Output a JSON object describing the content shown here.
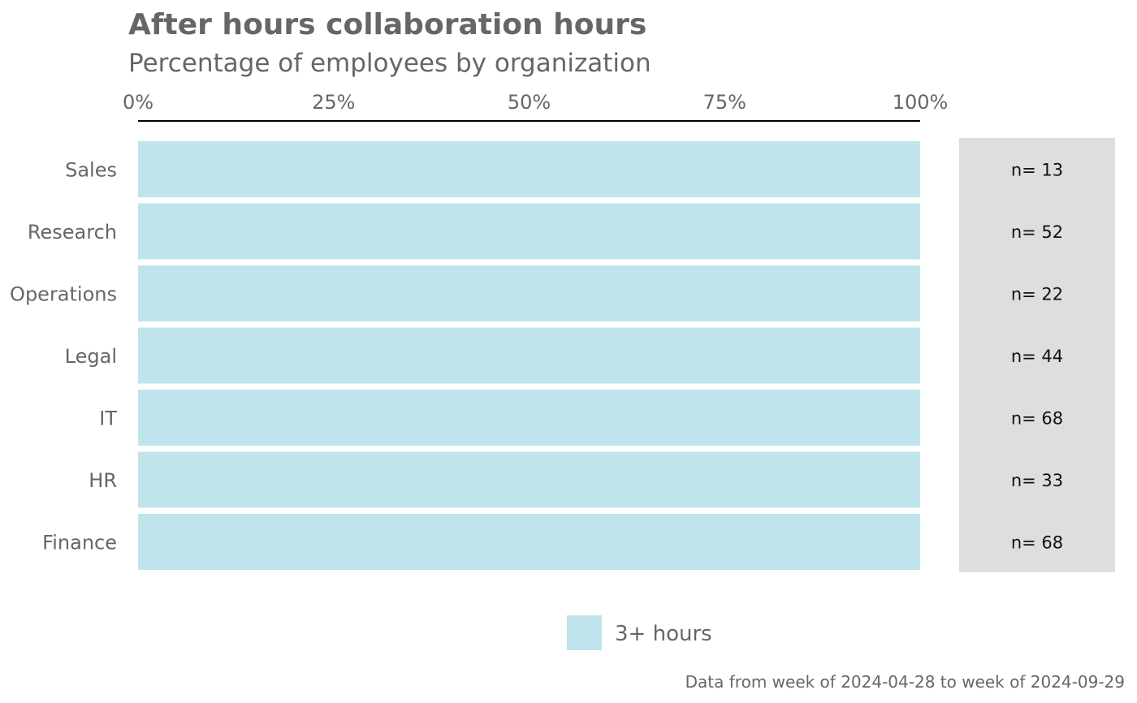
{
  "chart_data": {
    "type": "bar",
    "orientation": "horizontal",
    "stacked": true,
    "title": "After hours collaboration hours",
    "subtitle": "Percentage of employees by organization",
    "categories": [
      "Sales",
      "Research",
      "Operations",
      "Legal",
      "IT",
      "HR",
      "Finance"
    ],
    "series": [
      {
        "name": "3+ hours",
        "values": [
          100,
          100,
          100,
          100,
          100,
          100,
          100
        ],
        "color": "#bfe4ec"
      }
    ],
    "counts": [
      "n= 13",
      "n= 52",
      "n= 22",
      "n= 44",
      "n= 68",
      "n= 33",
      "n= 68"
    ],
    "xlim": [
      0,
      100
    ],
    "xticks": [
      0,
      25,
      50,
      75,
      100
    ],
    "xtick_labels": [
      "0%",
      "25%",
      "50%",
      "75%",
      "100%"
    ],
    "x_axis_position": "top",
    "legend_position": "bottom",
    "grid": false,
    "caption": "Data from week of 2024-04-28 to week of 2024-09-29",
    "colors": {
      "text": "#666666",
      "count_panel": "#dedede",
      "axis_line": "#000000"
    }
  }
}
